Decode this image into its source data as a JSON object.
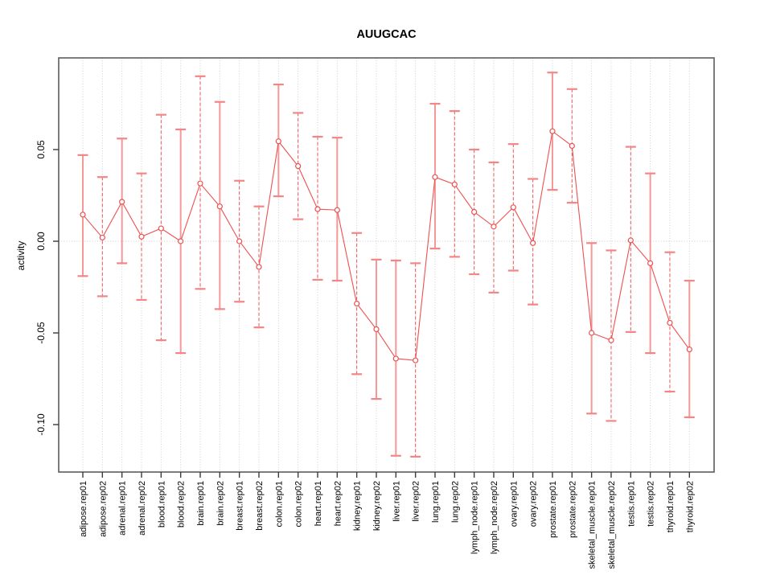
{
  "chart_data": {
    "type": "line",
    "title": "AUUGCAC",
    "xlabel": "",
    "ylabel": "activity",
    "legend": "none",
    "grid": "dotted vertical gridline at each category; dotted horizontal line at y=0",
    "ylim": [
      -0.126,
      0.1
    ],
    "y_ticks": [
      0.05,
      0.0,
      -0.05,
      -0.1
    ],
    "y_tick_labels": [
      "0.05",
      "0.00",
      "-0.05",
      "-0.10"
    ],
    "series_name": "activity",
    "categories": [
      "adipose.rep01",
      "adipose.rep02",
      "adrenal.rep01",
      "adrenal.rep02",
      "blood.rep01",
      "blood.rep02",
      "brain.rep01",
      "brain.rep02",
      "breast.rep01",
      "breast.rep02",
      "colon.rep01",
      "colon.rep02",
      "heart.rep01",
      "heart.rep02",
      "kidney.rep01",
      "kidney.rep02",
      "liver.rep01",
      "liver.rep02",
      "lung.rep01",
      "lung.rep02",
      "lymph_node.rep01",
      "lymph_node.rep02",
      "ovary.rep01",
      "ovary.rep02",
      "prostate.rep01",
      "prostate.rep02",
      "skeletal_muscle.rep01",
      "skeletal_muscle.rep02",
      "testis.rep01",
      "testis.rep02",
      "thyroid.rep01",
      "thyroid.rep02"
    ],
    "values": [
      0.0145,
      0.002,
      0.0215,
      0.0025,
      0.007,
      0.0,
      0.0315,
      0.019,
      0.0,
      -0.014,
      0.0545,
      0.041,
      0.0175,
      0.017,
      -0.034,
      -0.048,
      -0.064,
      -0.065,
      0.035,
      0.031,
      0.016,
      0.008,
      0.0185,
      -0.001,
      0.06,
      0.052,
      -0.05,
      -0.054,
      0.0005,
      -0.012,
      -0.0445,
      -0.059
    ],
    "error_high": [
      0.047,
      0.035,
      0.056,
      0.037,
      0.069,
      0.061,
      0.09,
      0.076,
      0.033,
      0.019,
      0.0855,
      0.07,
      0.057,
      0.0565,
      0.0045,
      -0.01,
      -0.0105,
      -0.012,
      0.075,
      0.071,
      0.05,
      0.043,
      0.053,
      0.034,
      0.092,
      0.083,
      -0.001,
      -0.005,
      0.0515,
      0.037,
      -0.006,
      -0.0215
    ],
    "error_low": [
      -0.019,
      -0.03,
      -0.012,
      -0.032,
      -0.054,
      -0.061,
      -0.026,
      -0.037,
      -0.033,
      -0.047,
      0.0245,
      0.012,
      -0.021,
      -0.0215,
      -0.0725,
      -0.086,
      -0.117,
      -0.1175,
      -0.004,
      -0.0085,
      -0.018,
      -0.028,
      -0.016,
      -0.0345,
      0.028,
      0.021,
      -0.094,
      -0.098,
      -0.0495,
      -0.061,
      -0.082,
      -0.096
    ],
    "error_bar_styles": [
      "solid",
      "dashed",
      "solid",
      "dashed",
      "dashed",
      "solid",
      "dashed",
      "solid",
      "dashed",
      "dashed",
      "solid",
      "dashed",
      "dashed",
      "solid",
      "dashed",
      "solid",
      "solid",
      "dashed",
      "solid",
      "dashed",
      "dashed",
      "dashed",
      "dashed",
      "dashed",
      "solid",
      "dashed",
      "solid",
      "dashed",
      "dashed",
      "solid",
      "dashed",
      "solid"
    ],
    "colors": {
      "series_line": "#ee5050",
      "point_stroke": "#ee5050",
      "errorbar_solid": "#f59898",
      "errorbar_dashed": "#ee5555",
      "errorbar_cap": "#f28585",
      "gridline": "#c9c9c9",
      "axis_box": "#5c5c5c",
      "tick": "#3a3a3a",
      "text": "#000000"
    }
  }
}
